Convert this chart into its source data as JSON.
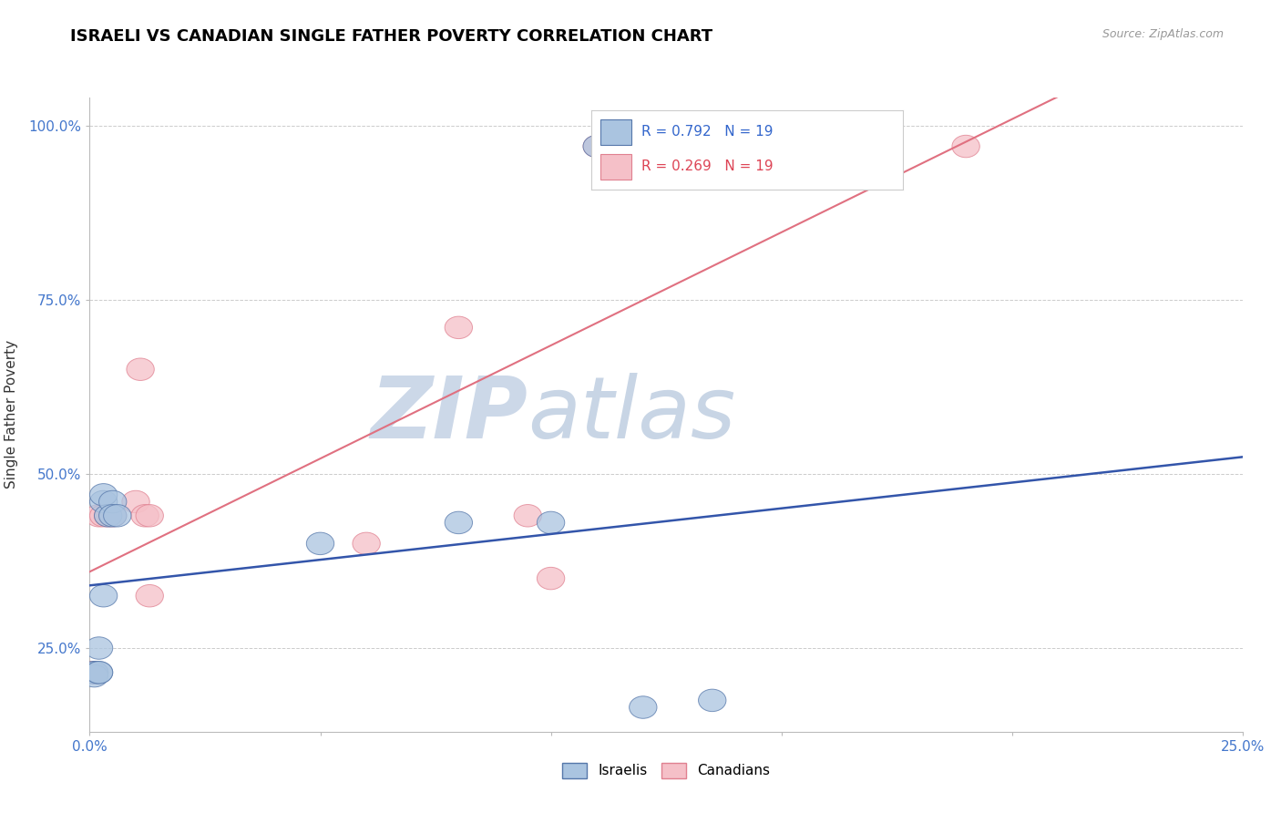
{
  "title": "ISRAELI VS CANADIAN SINGLE FATHER POVERTY CORRELATION CHART",
  "source": "Source: ZipAtlas.com",
  "ylabel": "Single Father Poverty",
  "xlim": [
    0.0,
    0.25
  ],
  "ylim": [
    0.13,
    1.04
  ],
  "xticks": [
    0.0,
    0.05,
    0.1,
    0.15,
    0.2,
    0.25
  ],
  "xtick_labels": [
    "0.0%",
    "",
    "",
    "",
    "",
    "25.0%"
  ],
  "yticks": [
    0.25,
    0.5,
    0.75,
    1.0
  ],
  "ytick_labels": [
    "25.0%",
    "50.0%",
    "75.0%",
    "100.0%"
  ],
  "grid_color": "#cccccc",
  "background_color": "#ffffff",
  "blue_face": "#aac4e0",
  "blue_edge": "#5577aa",
  "pink_face": "#f5c0c8",
  "pink_edge": "#e08090",
  "blue_line_color": "#3355aa",
  "pink_line_color": "#e07080",
  "R_blue": 0.792,
  "R_pink": 0.269,
  "N": 19,
  "israelis_x": [
    0.001,
    0.001,
    0.001,
    0.002,
    0.002,
    0.002,
    0.003,
    0.003,
    0.003,
    0.004,
    0.005,
    0.005,
    0.006,
    0.05,
    0.08,
    0.1,
    0.11,
    0.12,
    0.135
  ],
  "israelis_y": [
    0.215,
    0.215,
    0.21,
    0.215,
    0.25,
    0.215,
    0.325,
    0.46,
    0.47,
    0.44,
    0.46,
    0.44,
    0.44,
    0.4,
    0.43,
    0.43,
    0.97,
    0.165,
    0.175
  ],
  "canadians_x": [
    0.001,
    0.001,
    0.001,
    0.002,
    0.003,
    0.004,
    0.005,
    0.01,
    0.011,
    0.012,
    0.013,
    0.013,
    0.06,
    0.08,
    0.095,
    0.1,
    0.11,
    0.12,
    0.19
  ],
  "canadians_y": [
    0.215,
    0.215,
    0.215,
    0.44,
    0.44,
    0.44,
    0.44,
    0.46,
    0.65,
    0.44,
    0.325,
    0.44,
    0.4,
    0.71,
    0.44,
    0.35,
    0.97,
    0.97,
    0.97
  ],
  "watermark_zip": "ZIP",
  "watermark_atlas": "atlas",
  "watermark_color_zip": "#ccd8e8",
  "watermark_color_atlas": "#c8d5e5"
}
